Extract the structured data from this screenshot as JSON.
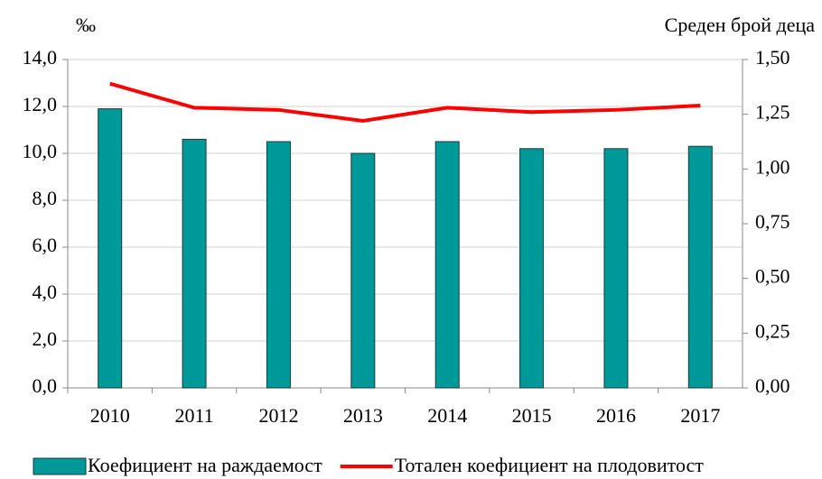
{
  "chart_data": {
    "type": "bar-line",
    "y_label": "‰",
    "y2_label": "Среден брой деца",
    "categories": [
      "2010",
      "2011",
      "2012",
      "2013",
      "2014",
      "2015",
      "2016",
      "2017"
    ],
    "series": [
      {
        "name": "Коефициент на раждаемост",
        "type": "bar",
        "color": "#009999",
        "values": [
          11.9,
          10.6,
          10.5,
          10.0,
          10.5,
          10.2,
          10.2,
          10.3
        ]
      },
      {
        "name": "Тотален коефициент на плодовитост",
        "type": "line",
        "color": "#ff0000",
        "axis": "y2",
        "values": [
          1.39,
          1.28,
          1.27,
          1.22,
          1.28,
          1.26,
          1.27,
          1.29
        ]
      }
    ],
    "ylim": [
      0,
      14
    ],
    "yticks": [
      {
        "value": 0,
        "label": "0,0"
      },
      {
        "value": 2,
        "label": "2,0"
      },
      {
        "value": 4,
        "label": "4,0"
      },
      {
        "value": 6,
        "label": "6,0"
      },
      {
        "value": 8,
        "label": "8,0"
      },
      {
        "value": 10,
        "label": "10,0"
      },
      {
        "value": 12,
        "label": "12,0"
      },
      {
        "value": 14,
        "label": "14,0"
      }
    ],
    "y2lim": [
      0,
      1.5
    ],
    "y2ticks": [
      {
        "value": 0,
        "label": "0,00"
      },
      {
        "value": 0.25,
        "label": "0,25"
      },
      {
        "value": 0.5,
        "label": "0,50"
      },
      {
        "value": 0.75,
        "label": "0,75"
      },
      {
        "value": 1,
        "label": "1,00"
      },
      {
        "value": 1.25,
        "label": "1,25"
      },
      {
        "value": 1.5,
        "label": "1,50"
      }
    ],
    "grid": true,
    "legend": "bottom"
  }
}
